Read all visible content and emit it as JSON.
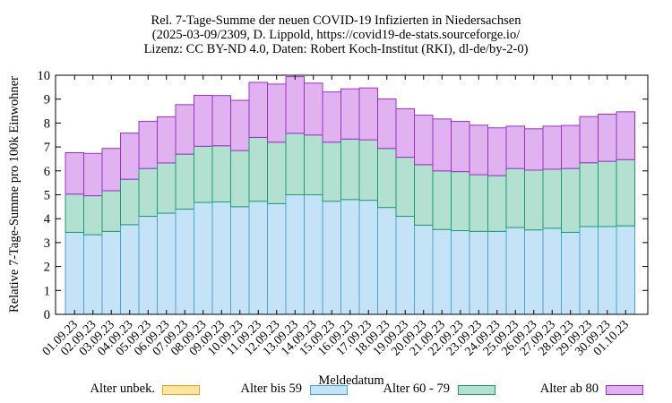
{
  "chart_data": {
    "type": "bar",
    "stacked": true,
    "title": [
      "Rel. 7-Tage-Summe der neuen COVID-19 Infizierten in Niedersachsen",
      "(2025-03-09/2309, D. Lippold, https://covid19-de-stats.sourceforge.io/",
      "Lizenz: CC BY-ND 4.0, Daten: Robert Koch-Institut (RKI), dl-de/by-2-0)"
    ],
    "xlabel": "Meldedatum",
    "ylabel": "Relative 7-Tage-Summe pro 100k Einwohner",
    "ylim": [
      0,
      10
    ],
    "yticks": [
      0,
      1,
      2,
      3,
      4,
      5,
      6,
      7,
      8,
      9,
      10
    ],
    "grid": false,
    "legend_position": "bottom",
    "categories": [
      "01.09.23",
      "02.09.23",
      "03.09.23",
      "04.09.23",
      "05.09.23",
      "06.09.23",
      "07.09.23",
      "08.09.23",
      "09.09.23",
      "10.09.23",
      "11.09.23",
      "12.09.23",
      "13.09.23",
      "14.09.23",
      "15.09.23",
      "16.09.23",
      "17.09.23",
      "18.09.23",
      "19.09.23",
      "20.09.23",
      "21.09.23",
      "22.09.23",
      "23.09.23",
      "24.09.23",
      "25.09.23",
      "26.09.23",
      "27.09.23",
      "28.09.23",
      "29.09.23",
      "30.09.23",
      "01.10.23"
    ],
    "series": [
      {
        "name": "Alter unbek.",
        "color": "#ffe3a0",
        "edge": "#e6a817",
        "values": [
          0,
          0,
          0,
          0,
          0,
          0,
          0,
          0,
          0,
          0,
          0,
          0,
          0,
          0,
          0,
          0,
          0,
          0,
          0,
          0,
          0,
          0,
          0,
          0,
          0,
          0,
          0,
          0,
          0,
          0,
          0
        ]
      },
      {
        "name": "Alter bis 59",
        "color": "#c5e3f6",
        "edge": "#4aa3d6",
        "values": [
          3.43,
          3.33,
          3.47,
          3.75,
          4.1,
          4.23,
          4.4,
          4.68,
          4.7,
          4.5,
          4.73,
          4.63,
          5.0,
          5.0,
          4.73,
          4.8,
          4.77,
          4.47,
          4.1,
          3.73,
          3.55,
          3.5,
          3.47,
          3.47,
          3.63,
          3.53,
          3.6,
          3.43,
          3.67,
          3.67,
          3.7
        ]
      },
      {
        "name": "Alter 60 - 79",
        "color": "#b3e0d0",
        "edge": "#1a9e6e",
        "values": [
          1.6,
          1.63,
          1.7,
          1.9,
          2.0,
          2.1,
          2.3,
          2.35,
          2.35,
          2.35,
          2.67,
          2.57,
          2.57,
          2.5,
          2.47,
          2.53,
          2.53,
          2.47,
          2.47,
          2.53,
          2.45,
          2.47,
          2.37,
          2.33,
          2.47,
          2.5,
          2.47,
          2.67,
          2.67,
          2.73,
          2.77
        ]
      },
      {
        "name": "Alter ab 80",
        "color": "#e0b3f0",
        "edge": "#9b30c8",
        "values": [
          1.73,
          1.77,
          1.77,
          1.93,
          1.97,
          1.93,
          2.07,
          2.13,
          2.1,
          2.1,
          2.3,
          2.43,
          2.37,
          2.17,
          2.1,
          2.1,
          2.17,
          2.07,
          2.03,
          2.07,
          2.17,
          2.1,
          2.07,
          2.0,
          1.77,
          1.73,
          1.8,
          1.8,
          1.93,
          1.97,
          2.0
        ]
      }
    ]
  }
}
